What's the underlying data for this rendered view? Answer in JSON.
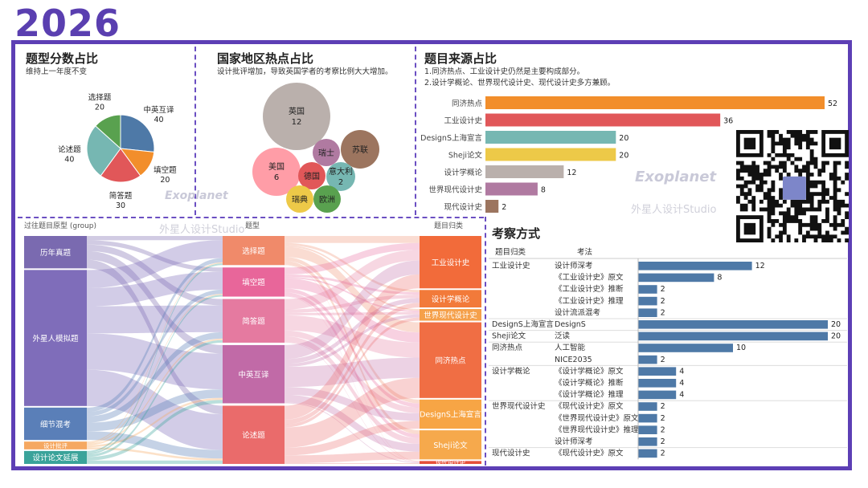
{
  "year": "2026",
  "watermark": {
    "brand": "Exoplanet",
    "studio": "外星人设计Studio"
  },
  "panel_type": {
    "title": "题型分数占比",
    "subtitle": "维持上一年度不变"
  },
  "panel_country": {
    "title": "国家地区热点占比",
    "subtitle": "设计批评增加，导致英国学者的考察比例大大增加。"
  },
  "panel_source": {
    "title": "题目来源占比",
    "subtitle_lines": [
      "1.同济热点、工业设计史仍然是主要构成部分。",
      "2.设计学概论、世界现代设计史、现代设计史多方兼顾。"
    ]
  },
  "panel_method": {
    "title": "考察方式",
    "col1": "题目归类",
    "col2": "考法"
  },
  "colors": {
    "accent": "#5d3fb5"
  },
  "chart_data": [
    {
      "type": "pie",
      "name": "题型分数占比",
      "slices": [
        {
          "label": "中英互译",
          "value": 40,
          "color": "#4e79a7"
        },
        {
          "label": "填空题",
          "value": 20,
          "color": "#f28e2b"
        },
        {
          "label": "简答题",
          "value": 30,
          "color": "#e15759"
        },
        {
          "label": "论述题",
          "value": 40,
          "color": "#76b7b2"
        },
        {
          "label": "选择题",
          "value": 20,
          "color": "#59a14f"
        }
      ]
    },
    {
      "type": "scatter",
      "name": "国家地区热点占比",
      "bubbles": [
        {
          "label": "英国",
          "value": "12",
          "color": "#bab0ac"
        },
        {
          "label": "美国",
          "value": "6",
          "color": "#ff9da7"
        },
        {
          "label": "苏联",
          "value": "",
          "color": "#9c755f"
        },
        {
          "label": "瑞士",
          "value": "",
          "color": "#b07aa1"
        },
        {
          "label": "德国",
          "value": "",
          "color": "#e15759"
        },
        {
          "label": "意大利",
          "value": "2",
          "color": "#76b7b2"
        },
        {
          "label": "瑞典",
          "value": "",
          "color": "#edc948"
        },
        {
          "label": "欧洲",
          "value": "",
          "color": "#59a14f"
        }
      ]
    },
    {
      "type": "bar",
      "name": "题目来源占比",
      "categories": [
        "同济热点",
        "工业设计史",
        "DesignS上海宣言",
        "Sheji论文",
        "设计学概论",
        "世界现代设计史",
        "现代设计史"
      ],
      "values": [
        52,
        36,
        20,
        20,
        12,
        8,
        2
      ],
      "colors": [
        "#f28e2b",
        "#e15759",
        "#76b7b2",
        "#edc948",
        "#bab0ac",
        "#b07aa1",
        "#9c755f"
      ],
      "xlim": [
        0,
        52
      ]
    },
    {
      "type": "sankey",
      "name": "题目归类",
      "headers": [
        "过往题目原型 (group)",
        "题型",
        "题目归类"
      ],
      "left": [
        {
          "label": "历年真题",
          "value": 25,
          "color": "#7a6ab0"
        },
        {
          "label": "外星人模拟题",
          "value": 105,
          "color": "#7f6dba"
        },
        {
          "label": "细节混考",
          "value": 25,
          "color": "#5a7fb8"
        },
        {
          "label": "设计批评",
          "value": 6,
          "color": "#f5a861"
        },
        {
          "label": "设计论文延展",
          "value": 10,
          "color": "#3aa39a"
        }
      ],
      "middle": [
        {
          "label": "选择题",
          "value": 20,
          "color": "#f08a6a"
        },
        {
          "label": "填空题",
          "value": 20,
          "color": "#e8669a"
        },
        {
          "label": "简答题",
          "value": 30,
          "color": "#e57aa0"
        },
        {
          "label": "中英互译",
          "value": 40,
          "color": "#c16aa7"
        },
        {
          "label": "论述题",
          "value": 40,
          "color": "#ea6b6b"
        }
      ],
      "right": [
        {
          "label": "工业设计史",
          "value": 36,
          "color": "#f26b3a"
        },
        {
          "label": "设计学概论",
          "value": 12,
          "color": "#f27a3a"
        },
        {
          "label": "世界现代设计史",
          "value": 8,
          "color": "#f5a04a"
        },
        {
          "label": "同济热点",
          "value": 52,
          "color": "#f06e44"
        },
        {
          "label": "DesignS上海宣言",
          "value": 20,
          "color": "#f7a545"
        },
        {
          "label": "Sheji论文",
          "value": 20,
          "color": "#f6a94c"
        },
        {
          "label": "现代设计史",
          "value": 2,
          "color": "#e6503a"
        }
      ]
    },
    {
      "type": "bar",
      "name": "考察方式",
      "groups": [
        {
          "category": "工业设计史",
          "rows": [
            {
              "label": "设计师深考",
              "value": 12
            },
            {
              "label": "《工业设计史》原文",
              "value": 8
            },
            {
              "label": "《工业设计史》推断",
              "value": 2
            },
            {
              "label": "《工业设计史》推理",
              "value": 2
            },
            {
              "label": "设计流派混考",
              "value": 2
            }
          ]
        },
        {
          "category": "DesignS上海宣言",
          "rows": [
            {
              "label": "DesignS",
              "value": 20
            }
          ]
        },
        {
          "category": "Sheji论文",
          "rows": [
            {
              "label": "泛读",
              "value": 20
            }
          ]
        },
        {
          "category": "同济热点",
          "rows": [
            {
              "label": "人工智能",
              "value": 10
            },
            {
              "label": "NICE2035",
              "value": 2
            }
          ]
        },
        {
          "category": "设计学概论",
          "rows": [
            {
              "label": "《设计学概论》原文",
              "value": 4
            },
            {
              "label": "《设计学概论》推断",
              "value": 4
            },
            {
              "label": "《设计学概论》推理",
              "value": 4
            }
          ]
        },
        {
          "category": "世界现代设计史",
          "rows": [
            {
              "label": "《现代设计史》原文",
              "value": 2
            },
            {
              "label": "《世界现代设计史》原文",
              "value": 2
            },
            {
              "label": "《世界现代设计史》推理",
              "value": 2
            },
            {
              "label": "设计师深考",
              "value": 2
            }
          ]
        },
        {
          "category": "现代设计史",
          "rows": [
            {
              "label": "《现代设计史》原文",
              "value": 2
            }
          ]
        }
      ],
      "xlim": [
        0,
        20
      ],
      "bar_color": "#4e79a7"
    }
  ]
}
